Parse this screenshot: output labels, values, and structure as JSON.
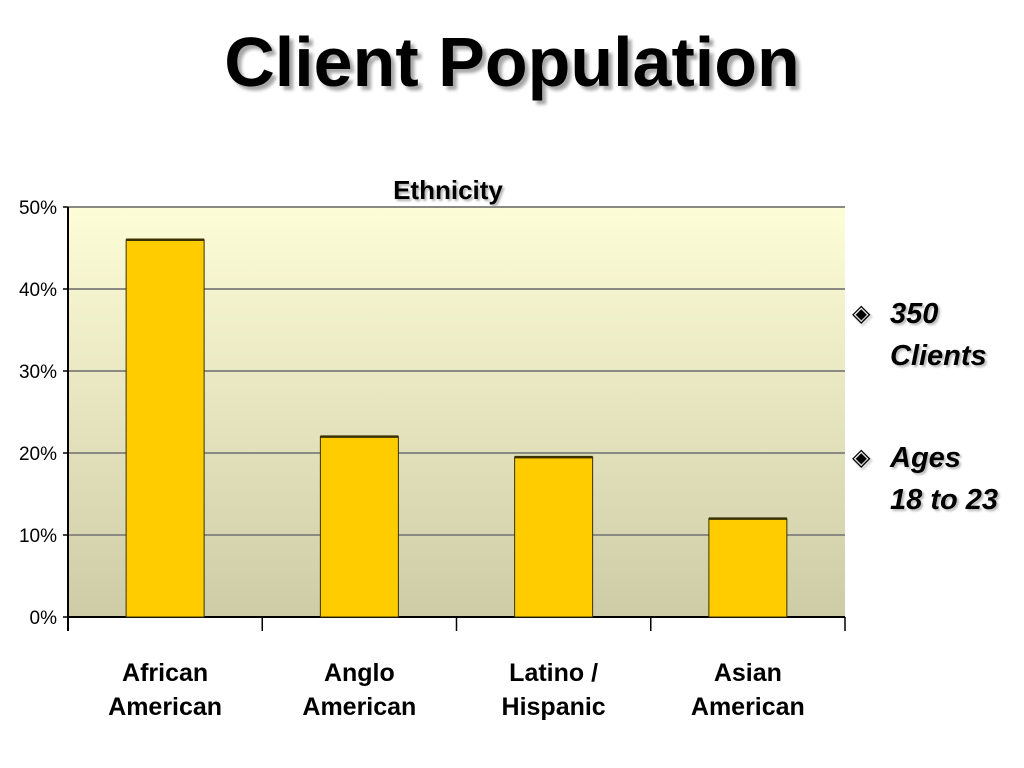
{
  "slide": {
    "title": "Client Population"
  },
  "bullets": [
    {
      "icon": "diamond-bullet-icon",
      "text": "350\nClients"
    },
    {
      "icon": "diamond-bullet-icon",
      "text": "Ages\n18 to 23"
    }
  ],
  "chart_data": {
    "type": "bar",
    "title": "Ethnicity",
    "xlabel": "",
    "ylabel": "",
    "categories": [
      "African\nAmerican",
      "Anglo\nAmerican",
      "Latino /\nHispanic",
      "Asian\nAmerican"
    ],
    "values": [
      46,
      22,
      19.5,
      12
    ],
    "ylim": [
      0,
      50
    ],
    "yticks": [
      "0%",
      "10%",
      "20%",
      "30%",
      "40%",
      "50%"
    ],
    "y_format": "percent",
    "grid": true,
    "legend": "none",
    "colors": {
      "bar": "#FFCC00",
      "bar_outline": "#3a3000",
      "plot_top": "#FDFDD8",
      "plot_bottom": "#CECCA6",
      "gridline": "#8a8a82",
      "axis": "#000000"
    }
  }
}
